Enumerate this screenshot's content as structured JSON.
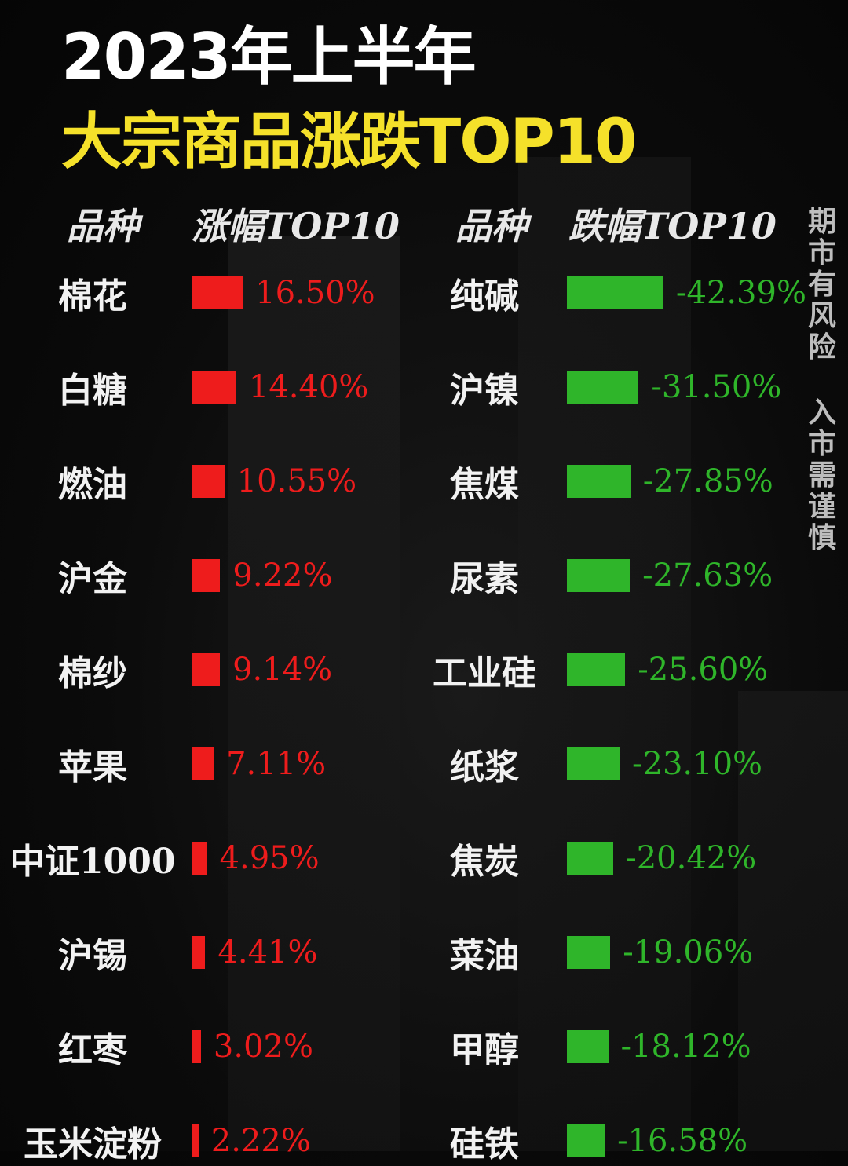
{
  "title_line1": "2023年上半年",
  "title_line2": "大宗商品涨跌TOP10",
  "side_note": [
    "期市有风险",
    "入市需谨慎"
  ],
  "colors": {
    "rise": "#ee1c1c",
    "fall": "#2fb52a",
    "title_accent": "#f5e12a"
  },
  "chart_data": [
    {
      "type": "bar",
      "headers": {
        "category": "品种",
        "value": "涨幅TOP10"
      },
      "categories": [
        "棉花",
        "白糖",
        "燃油",
        "沪金",
        "棉纱",
        "苹果",
        "中证1000",
        "沪锡",
        "红枣",
        "玉米淀粉"
      ],
      "values": [
        16.5,
        14.4,
        10.55,
        9.22,
        9.14,
        7.11,
        4.95,
        4.41,
        3.02,
        2.22
      ],
      "labels": [
        "16.50%",
        "14.40%",
        "10.55%",
        "9.22%",
        "9.14%",
        "7.11%",
        "4.95%",
        "4.41%",
        "3.02%",
        "2.22%"
      ],
      "unit": "%"
    },
    {
      "type": "bar",
      "headers": {
        "category": "品种",
        "value": "跌幅TOP10"
      },
      "categories": [
        "纯碱",
        "沪镍",
        "焦煤",
        "尿素",
        "工业硅",
        "纸浆",
        "焦炭",
        "菜油",
        "甲醇",
        "硅铁"
      ],
      "values": [
        -42.39,
        -31.5,
        -27.85,
        -27.63,
        -25.6,
        -23.1,
        -20.42,
        -19.06,
        -18.12,
        -16.58
      ],
      "labels": [
        "-42.39%",
        "-31.50%",
        "-27.85%",
        "-27.63%",
        "-25.60%",
        "-23.10%",
        "-20.42%",
        "-19.06%",
        "-18.12%",
        "-16.58%"
      ],
      "unit": "%"
    }
  ]
}
